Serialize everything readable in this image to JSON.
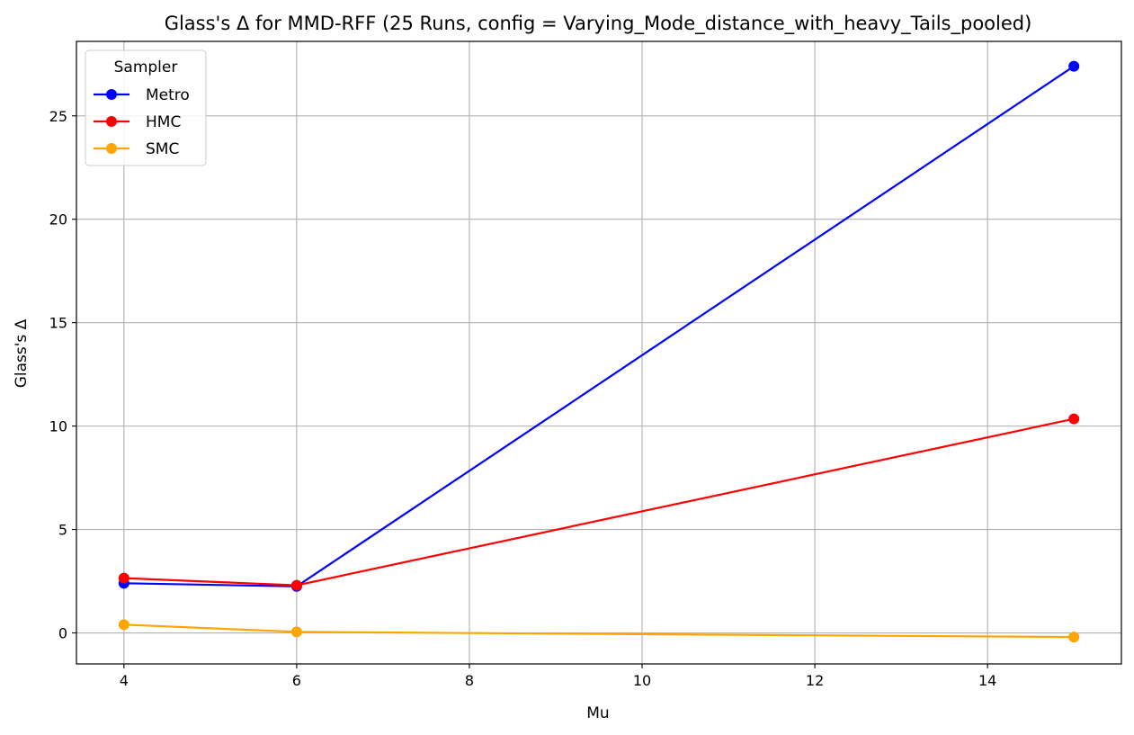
{
  "chart_data": {
    "type": "line",
    "title": "Glass's Δ for MMD-RFF (25 Runs, config = Varying_Mode_distance_with_heavy_Tails_pooled)",
    "xlabel": "Mu",
    "ylabel": "Glass's Δ",
    "x": [
      4,
      6,
      15
    ],
    "xlim": [
      3.45,
      15.55
    ],
    "ylim": [
      -1.5,
      28.6
    ],
    "xticks": [
      4,
      6,
      8,
      10,
      12,
      14
    ],
    "yticks": [
      0,
      5,
      10,
      15,
      20,
      25
    ],
    "grid": true,
    "legend": {
      "title": "Sampler",
      "placement": "upper-left"
    },
    "series": [
      {
        "name": "Metro",
        "color": "#0000ff",
        "values": [
          2.4,
          2.25,
          27.4
        ]
      },
      {
        "name": "HMC",
        "color": "#ff0000",
        "values": [
          2.65,
          2.3,
          10.35
        ]
      },
      {
        "name": "SMC",
        "color": "#ffa500",
        "values": [
          0.4,
          0.05,
          -0.2
        ]
      }
    ]
  }
}
